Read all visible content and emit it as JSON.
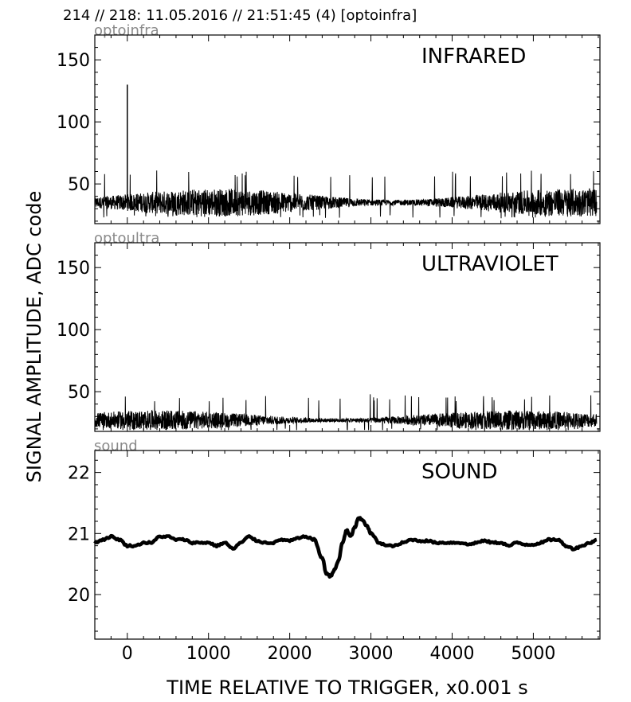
{
  "figure": {
    "suptitle": "214 // 218:   11.05.2016 // 21:51:45 (4)  [optoinfra]",
    "xlabel": "TIME RELATIVE TO TRIGGER,   x0.001 s",
    "ylabel": "SIGNAL AMPLITUDE,  ADC code"
  },
  "chart_data": [
    {
      "type": "line",
      "panel_name": "optoinfra",
      "annotation": "INFRARED",
      "xlim": [
        -400,
        5820
      ],
      "ylim": [
        18,
        170
      ],
      "xticks": [
        0,
        1000,
        2000,
        3000,
        4000,
        5000
      ],
      "yticks": [
        50,
        100,
        150
      ],
      "x_range": [
        -400,
        5780
      ],
      "baseline_mean": 35,
      "noise_band": [
        25,
        55
      ],
      "spikes": [
        {
          "x": 0,
          "y": 130
        }
      ],
      "grid": false
    },
    {
      "type": "line",
      "panel_name": "optoultra",
      "annotation": "ULTRAVIOLET",
      "xlim": [
        -400,
        5820
      ],
      "ylim": [
        18,
        170
      ],
      "xticks": [
        0,
        1000,
        2000,
        3000,
        4000,
        5000
      ],
      "yticks": [
        50,
        100,
        150
      ],
      "x_range": [
        -400,
        5780
      ],
      "baseline_mean": 27,
      "noise_band": [
        21,
        42
      ],
      "grid": false
    },
    {
      "type": "line",
      "panel_name": "sound",
      "annotation": "SOUND",
      "xlim": [
        -400,
        5820
      ],
      "ylim": [
        19.27,
        22.36
      ],
      "xticks": [
        0,
        1000,
        2000,
        3000,
        4000,
        5000
      ],
      "yticks": [
        20,
        21,
        22
      ],
      "x": [
        -400,
        -300,
        -200,
        -100,
        0,
        100,
        200,
        300,
        400,
        500,
        600,
        700,
        800,
        900,
        1000,
        1100,
        1200,
        1300,
        1400,
        1500,
        1600,
        1700,
        1800,
        1900,
        2000,
        2100,
        2200,
        2300,
        2400,
        2450,
        2500,
        2550,
        2600,
        2650,
        2700,
        2750,
        2800,
        2850,
        2900,
        2950,
        3000,
        3100,
        3200,
        3300,
        3400,
        3500,
        3600,
        3700,
        3800,
        3900,
        4000,
        4100,
        4200,
        4300,
        4400,
        4500,
        4600,
        4700,
        4800,
        4900,
        5000,
        5100,
        5200,
        5300,
        5400,
        5500,
        5600,
        5700,
        5780
      ],
      "y": [
        20.85,
        20.9,
        20.95,
        20.9,
        20.8,
        20.8,
        20.85,
        20.85,
        20.95,
        20.95,
        20.9,
        20.9,
        20.85,
        20.85,
        20.85,
        20.8,
        20.85,
        20.75,
        20.85,
        20.95,
        20.88,
        20.85,
        20.85,
        20.9,
        20.88,
        20.92,
        20.95,
        20.9,
        20.6,
        20.35,
        20.3,
        20.4,
        20.55,
        20.85,
        21.05,
        20.95,
        21.1,
        21.25,
        21.22,
        21.12,
        21.0,
        20.85,
        20.8,
        20.8,
        20.85,
        20.9,
        20.88,
        20.88,
        20.85,
        20.85,
        20.85,
        20.85,
        20.82,
        20.85,
        20.88,
        20.85,
        20.85,
        20.8,
        20.85,
        20.82,
        20.82,
        20.85,
        20.9,
        20.9,
        20.8,
        20.75,
        20.8,
        20.85,
        20.9
      ],
      "line_width": 0.06,
      "grid": false
    }
  ]
}
